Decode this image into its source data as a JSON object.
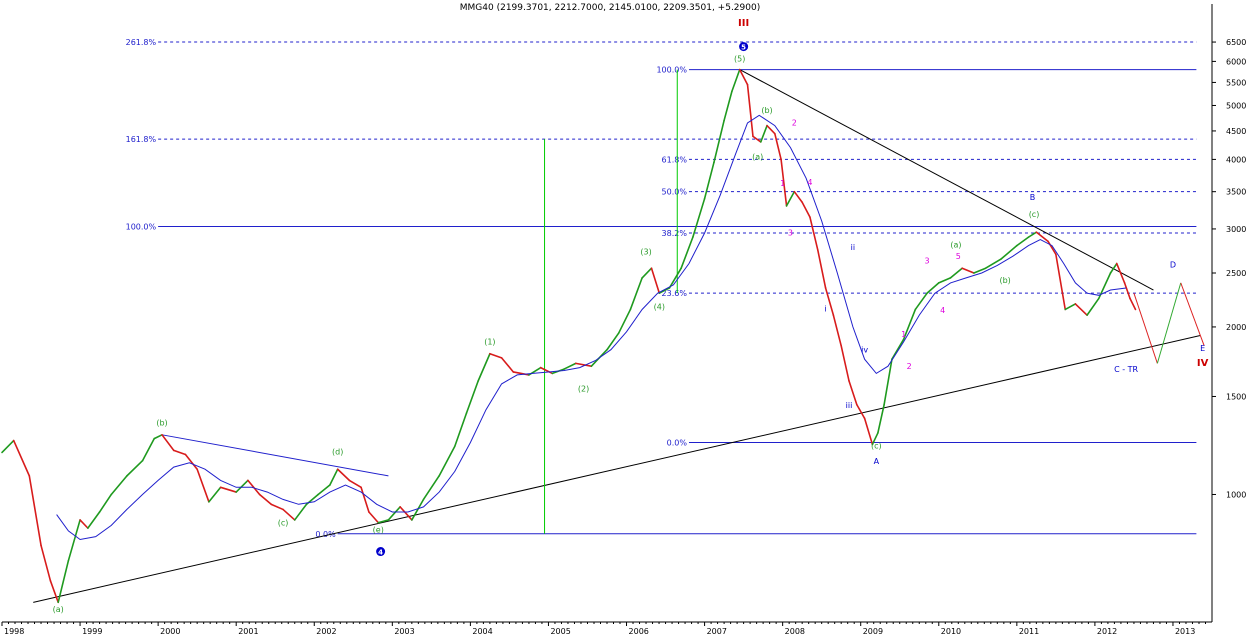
{
  "chart_data": {
    "type": "line",
    "title": "MMG40 (2199.3701, 2212.7000, 2145.0100, 2209.3501, +5.2900)",
    "y_scale": "log",
    "ylim": [
      590,
      7300
    ],
    "y_ticks": [
      1000,
      1500,
      2000,
      2500,
      3000,
      3500,
      4000,
      4500,
      5000,
      5500,
      6000,
      6500
    ],
    "x_ticks": [
      "1998",
      "1999",
      "2000",
      "2001",
      "2002",
      "2003",
      "2004",
      "2005",
      "2006",
      "2007",
      "2008",
      "2009",
      "2010",
      "2011",
      "2012",
      "2013"
    ],
    "series": [
      {
        "kind": "price",
        "points": [
          [
            1998.0,
            1190
          ],
          [
            1998.15,
            1250
          ],
          [
            1998.35,
            1080
          ],
          [
            1998.5,
            810
          ],
          [
            1998.62,
            700
          ],
          [
            1998.72,
            640
          ],
          [
            1998.85,
            760
          ],
          [
            1999.0,
            900
          ],
          [
            1999.1,
            870
          ],
          [
            1999.25,
            930
          ],
          [
            1999.4,
            1000
          ],
          [
            1999.6,
            1080
          ],
          [
            1999.8,
            1150
          ],
          [
            1999.95,
            1260
          ],
          [
            2000.05,
            1280
          ],
          [
            2000.2,
            1200
          ],
          [
            2000.35,
            1180
          ],
          [
            2000.5,
            1110
          ],
          [
            2000.65,
            970
          ],
          [
            2000.8,
            1030
          ],
          [
            2001.0,
            1010
          ],
          [
            2001.15,
            1060
          ],
          [
            2001.3,
            1000
          ],
          [
            2001.45,
            960
          ],
          [
            2001.6,
            940
          ],
          [
            2001.75,
            900
          ],
          [
            2001.9,
            960
          ],
          [
            2002.05,
            1000
          ],
          [
            2002.2,
            1040
          ],
          [
            2002.3,
            1110
          ],
          [
            2002.45,
            1060
          ],
          [
            2002.6,
            1030
          ],
          [
            2002.7,
            930
          ],
          [
            2002.82,
            890
          ],
          [
            2002.95,
            900
          ],
          [
            2003.1,
            950
          ],
          [
            2003.25,
            900
          ],
          [
            2003.4,
            980
          ],
          [
            2003.6,
            1080
          ],
          [
            2003.8,
            1220
          ],
          [
            2003.95,
            1400
          ],
          [
            2004.1,
            1600
          ],
          [
            2004.25,
            1790
          ],
          [
            2004.4,
            1760
          ],
          [
            2004.55,
            1660
          ],
          [
            2004.75,
            1640
          ],
          [
            2004.9,
            1690
          ],
          [
            2005.05,
            1650
          ],
          [
            2005.2,
            1680
          ],
          [
            2005.35,
            1720
          ],
          [
            2005.55,
            1700
          ],
          [
            2005.75,
            1820
          ],
          [
            2005.9,
            1950
          ],
          [
            2006.05,
            2150
          ],
          [
            2006.2,
            2450
          ],
          [
            2006.32,
            2550
          ],
          [
            2006.42,
            2300
          ],
          [
            2006.55,
            2350
          ],
          [
            2006.7,
            2550
          ],
          [
            2006.85,
            2900
          ],
          [
            2007.0,
            3400
          ],
          [
            2007.12,
            3950
          ],
          [
            2007.25,
            4700
          ],
          [
            2007.35,
            5300
          ],
          [
            2007.45,
            5800
          ],
          [
            2007.55,
            5450
          ],
          [
            2007.62,
            4400
          ],
          [
            2007.72,
            4300
          ],
          [
            2007.8,
            4600
          ],
          [
            2007.9,
            4450
          ],
          [
            2007.98,
            4000
          ],
          [
            2008.05,
            3300
          ],
          [
            2008.15,
            3500
          ],
          [
            2008.25,
            3350
          ],
          [
            2008.35,
            3150
          ],
          [
            2008.45,
            2750
          ],
          [
            2008.55,
            2350
          ],
          [
            2008.65,
            2100
          ],
          [
            2008.75,
            1850
          ],
          [
            2008.85,
            1600
          ],
          [
            2008.95,
            1450
          ],
          [
            2009.05,
            1370
          ],
          [
            2009.15,
            1230
          ],
          [
            2009.22,
            1290
          ],
          [
            2009.3,
            1450
          ],
          [
            2009.4,
            1750
          ],
          [
            2009.55,
            1900
          ],
          [
            2009.7,
            2150
          ],
          [
            2009.85,
            2300
          ],
          [
            2010.0,
            2400
          ],
          [
            2010.15,
            2450
          ],
          [
            2010.3,
            2550
          ],
          [
            2010.45,
            2500
          ],
          [
            2010.6,
            2550
          ],
          [
            2010.8,
            2650
          ],
          [
            2011.0,
            2800
          ],
          [
            2011.15,
            2900
          ],
          [
            2011.25,
            2960
          ],
          [
            2011.4,
            2850
          ],
          [
            2011.5,
            2700
          ],
          [
            2011.62,
            2150
          ],
          [
            2011.75,
            2200
          ],
          [
            2011.9,
            2100
          ],
          [
            2012.05,
            2250
          ],
          [
            2012.2,
            2500
          ],
          [
            2012.28,
            2600
          ],
          [
            2012.38,
            2400
          ],
          [
            2012.45,
            2250
          ],
          [
            2012.52,
            2150
          ]
        ]
      },
      {
        "kind": "moving-average",
        "points": [
          [
            1998.7,
            920
          ],
          [
            1998.85,
            860
          ],
          [
            1999.0,
            830
          ],
          [
            1999.2,
            840
          ],
          [
            1999.4,
            880
          ],
          [
            1999.6,
            940
          ],
          [
            1999.8,
            1000
          ],
          [
            2000.0,
            1060
          ],
          [
            2000.2,
            1120
          ],
          [
            2000.4,
            1140
          ],
          [
            2000.6,
            1110
          ],
          [
            2000.8,
            1060
          ],
          [
            2001.0,
            1030
          ],
          [
            2001.2,
            1030
          ],
          [
            2001.4,
            1010
          ],
          [
            2001.6,
            980
          ],
          [
            2001.8,
            960
          ],
          [
            2002.0,
            970
          ],
          [
            2002.2,
            1010
          ],
          [
            2002.4,
            1040
          ],
          [
            2002.6,
            1010
          ],
          [
            2002.8,
            960
          ],
          [
            2003.0,
            930
          ],
          [
            2003.2,
            930
          ],
          [
            2003.4,
            950
          ],
          [
            2003.6,
            1010
          ],
          [
            2003.8,
            1100
          ],
          [
            2004.0,
            1240
          ],
          [
            2004.2,
            1420
          ],
          [
            2004.4,
            1580
          ],
          [
            2004.6,
            1640
          ],
          [
            2004.8,
            1650
          ],
          [
            2005.0,
            1660
          ],
          [
            2005.2,
            1670
          ],
          [
            2005.4,
            1690
          ],
          [
            2005.6,
            1740
          ],
          [
            2005.8,
            1820
          ],
          [
            2006.0,
            1960
          ],
          [
            2006.2,
            2150
          ],
          [
            2006.4,
            2300
          ],
          [
            2006.6,
            2380
          ],
          [
            2006.8,
            2600
          ],
          [
            2007.0,
            2950
          ],
          [
            2007.2,
            3450
          ],
          [
            2007.4,
            4100
          ],
          [
            2007.55,
            4650
          ],
          [
            2007.7,
            4800
          ],
          [
            2007.9,
            4600
          ],
          [
            2008.1,
            4200
          ],
          [
            2008.3,
            3700
          ],
          [
            2008.5,
            3100
          ],
          [
            2008.7,
            2500
          ],
          [
            2008.9,
            2000
          ],
          [
            2009.05,
            1750
          ],
          [
            2009.2,
            1650
          ],
          [
            2009.35,
            1700
          ],
          [
            2009.55,
            1880
          ],
          [
            2009.75,
            2100
          ],
          [
            2009.95,
            2300
          ],
          [
            2010.15,
            2400
          ],
          [
            2010.35,
            2450
          ],
          [
            2010.55,
            2500
          ],
          [
            2010.75,
            2580
          ],
          [
            2010.95,
            2680
          ],
          [
            2011.15,
            2800
          ],
          [
            2011.3,
            2870
          ],
          [
            2011.45,
            2800
          ],
          [
            2011.6,
            2600
          ],
          [
            2011.75,
            2400
          ],
          [
            2011.9,
            2300
          ],
          [
            2012.05,
            2280
          ],
          [
            2012.2,
            2330
          ],
          [
            2012.4,
            2350
          ]
        ]
      }
    ],
    "trend_lines": [
      {
        "name": "lower-support",
        "from": [
          1998.4,
          640
        ],
        "to": [
          2013.35,
          1930
        ]
      },
      {
        "name": "upper-resistance",
        "from": [
          2007.45,
          5800
        ],
        "to": [
          2012.75,
          2330
        ]
      },
      {
        "name": "2000-2002-resistance",
        "from": [
          2000.05,
          1280
        ],
        "to": [
          2002.95,
          1080
        ]
      },
      {
        "name": "projection-c",
        "from": [
          2012.5,
          2300
        ],
        "to": [
          2012.8,
          1720
        ]
      },
      {
        "name": "projection-d",
        "from": [
          2012.8,
          1720
        ],
        "to": [
          2013.1,
          2400
        ]
      },
      {
        "name": "projection-e",
        "from": [
          2013.1,
          2400
        ],
        "to": [
          2013.4,
          1850
        ]
      }
    ],
    "fib_levels": [
      {
        "label": "261.8%",
        "value": 6500,
        "style": "dashed",
        "from": 2000.0,
        "to": 2013.3
      },
      {
        "label": "161.8%",
        "value": 4350,
        "style": "dashed",
        "from": 2000.0,
        "to": 2013.3
      },
      {
        "label": "100.0%",
        "value": 3030,
        "style": "solid",
        "from": 2000.0,
        "to": 2013.3
      },
      {
        "label": "0.0%",
        "value": 850,
        "style": "solid",
        "from": 2002.3,
        "to": 2013.3
      },
      {
        "label": "100.0%",
        "value": 5800,
        "style": "solid",
        "from": 2006.8,
        "to": 2013.3
      },
      {
        "label": "61.8%",
        "value": 4000,
        "style": "dashed",
        "from": 2006.8,
        "to": 2013.3
      },
      {
        "label": "50.0%",
        "value": 3500,
        "style": "dashed",
        "from": 2006.8,
        "to": 2013.3
      },
      {
        "label": "38.2%",
        "value": 2950,
        "style": "dashed",
        "from": 2006.8,
        "to": 2013.3
      },
      {
        "label": "23.6%",
        "value": 2300,
        "style": "dashed",
        "from": 2006.8,
        "to": 2013.3
      },
      {
        "label": "0.0%",
        "value": 1240,
        "style": "solid",
        "from": 2006.8,
        "to": 2013.3
      }
    ],
    "markers": [
      {
        "kind": "vertical",
        "x": 2004.95,
        "from": 850,
        "to": 4350,
        "color": "#00cc00"
      },
      {
        "kind": "vertical",
        "x": 2006.65,
        "from": 2300,
        "to": 5800,
        "color": "#00cc00"
      }
    ],
    "annotations": [
      {
        "text": "(a)",
        "x": 1998.72,
        "y": 615,
        "color": "#2a9a2a"
      },
      {
        "text": "(b)",
        "x": 2000.05,
        "y": 1330,
        "color": "#2a9a2a"
      },
      {
        "text": "(c)",
        "x": 2001.6,
        "y": 880,
        "color": "#2a9a2a"
      },
      {
        "text": "(d)",
        "x": 2002.3,
        "y": 1180,
        "color": "#2a9a2a"
      },
      {
        "text": "(e)",
        "x": 2002.82,
        "y": 855,
        "color": "#2a9a2a"
      },
      {
        "text": "4",
        "x": 2002.85,
        "y": 780,
        "color": "#0000cc",
        "circle": true
      },
      {
        "text": "(1)",
        "x": 2004.25,
        "y": 1860,
        "color": "#2a9a2a"
      },
      {
        "text": "(2)",
        "x": 2005.45,
        "y": 1530,
        "color": "#2a9a2a"
      },
      {
        "text": "(3)",
        "x": 2006.25,
        "y": 2700,
        "color": "#2a9a2a"
      },
      {
        "text": "(4)",
        "x": 2006.42,
        "y": 2150,
        "color": "#2a9a2a"
      },
      {
        "text": "(5)",
        "x": 2007.45,
        "y": 6000,
        "color": "#2a9a2a"
      },
      {
        "text": "5",
        "x": 2007.5,
        "y": 6300,
        "color": "#0000cc",
        "circle": true
      },
      {
        "text": "III",
        "x": 2007.5,
        "y": 6950,
        "color": "#cc0000"
      },
      {
        "text": "(a)",
        "x": 2007.68,
        "y": 4000,
        "color": "#2a9a2a"
      },
      {
        "text": "(b)",
        "x": 2007.8,
        "y": 4850,
        "color": "#2a9a2a"
      },
      {
        "text": "1",
        "x": 2008.0,
        "y": 3580,
        "color": "#dd00dd"
      },
      {
        "text": "2",
        "x": 2008.15,
        "y": 4600,
        "color": "#dd00dd"
      },
      {
        "text": "3",
        "x": 2008.1,
        "y": 2920,
        "color": "#dd00dd"
      },
      {
        "text": "4",
        "x": 2008.35,
        "y": 3600,
        "color": "#dd00dd"
      },
      {
        "text": "i",
        "x": 2008.55,
        "y": 2130,
        "color": "#0000cc"
      },
      {
        "text": "ii",
        "x": 2008.9,
        "y": 2750,
        "color": "#0000cc"
      },
      {
        "text": "iii",
        "x": 2008.85,
        "y": 1430,
        "color": "#0000cc"
      },
      {
        "text": "iv",
        "x": 2009.05,
        "y": 1800,
        "color": "#0000cc"
      },
      {
        "text": "(c)",
        "x": 2009.2,
        "y": 1210,
        "color": "#2a9a2a"
      },
      {
        "text": "A",
        "x": 2009.2,
        "y": 1135,
        "color": "#0000cc"
      },
      {
        "text": "1",
        "x": 2009.55,
        "y": 1920,
        "color": "#dd00dd"
      },
      {
        "text": "2",
        "x": 2009.62,
        "y": 1680,
        "color": "#dd00dd"
      },
      {
        "text": "3",
        "x": 2009.85,
        "y": 2600,
        "color": "#dd00dd"
      },
      {
        "text": "4",
        "x": 2010.05,
        "y": 2120,
        "color": "#dd00dd"
      },
      {
        "text": "5",
        "x": 2010.25,
        "y": 2650,
        "color": "#dd00dd"
      },
      {
        "text": "(a)",
        "x": 2010.22,
        "y": 2780,
        "color": "#2a9a2a"
      },
      {
        "text": "(b)",
        "x": 2010.85,
        "y": 2400,
        "color": "#2a9a2a"
      },
      {
        "text": "B",
        "x": 2011.2,
        "y": 3380,
        "color": "#0000cc"
      },
      {
        "text": "(c)",
        "x": 2011.22,
        "y": 3150,
        "color": "#2a9a2a"
      },
      {
        "text": "D",
        "x": 2013.0,
        "y": 2560,
        "color": "#0000cc"
      },
      {
        "text": "E",
        "x": 2013.38,
        "y": 1810,
        "color": "#0000cc"
      },
      {
        "text": "IV",
        "x": 2013.38,
        "y": 1700,
        "color": "#cc0000"
      },
      {
        "text": "C - TR",
        "x": 2012.4,
        "y": 1660,
        "color": "#0000cc"
      }
    ],
    "colors": {
      "up": "#1f9a1f",
      "down": "#d81c1c",
      "moving_average": "#2020cc",
      "fib": "#2020cc",
      "trend": "#000000",
      "title": "#000000",
      "projection_down": "#dd2222",
      "projection_up": "#33aa33"
    },
    "grid": false
  }
}
